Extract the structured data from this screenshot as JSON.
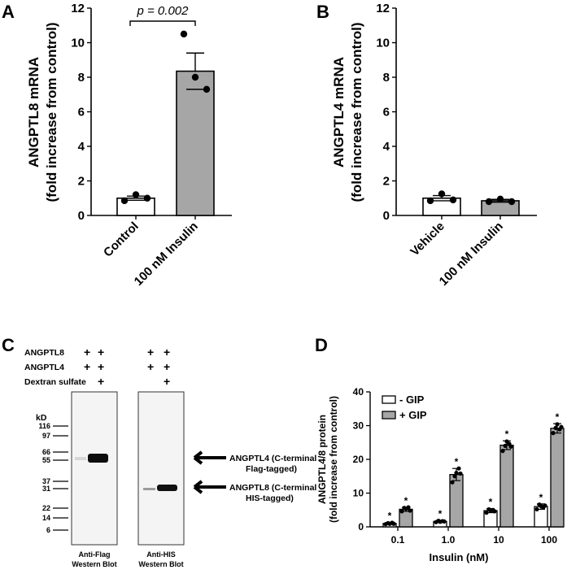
{
  "panels": {
    "A": {
      "label": "A",
      "ylabel1": "ANGPTL8 mRNA",
      "ylabel2": "(fold increase from control)",
      "pvalue": "p = 0.002"
    },
    "B": {
      "label": "B",
      "ylabel1": "ANGPTL4 mRNA",
      "ylabel2": "(fold increase from control)"
    },
    "C": {
      "label": "C",
      "rows": [
        "ANGPTL8",
        "ANGPTL4",
        "Dextran sulfate"
      ],
      "plus": "+",
      "kd_label": "kD",
      "markers": [
        "116",
        "97",
        "66",
        "55",
        "37",
        "31",
        "22",
        "14",
        "6"
      ],
      "annot1": [
        "ANGPTL4 (C-terminal",
        "Flag-tagged)"
      ],
      "annot2": [
        "ANGPTL8 (C-terminal",
        "HIS-tagged)"
      ],
      "blot1_caption": [
        "Anti-Flag",
        "Western Blot"
      ],
      "blot2_caption": [
        "Anti-HIS",
        "Western Blot"
      ]
    },
    "D": {
      "label": "D",
      "ylabel1": "ANGPTL4/8 protein",
      "ylabel2": "(fold increase from control)",
      "xlabel": "Insulin (nM)",
      "legend": [
        "- GIP",
        "+ GIP"
      ],
      "sig_marker": "*"
    }
  },
  "colors": {
    "gray_bar": "#a6a6a6",
    "white_bar": "#ffffff",
    "ink": "#000000"
  },
  "chart_data": [
    {
      "type": "bar",
      "panel": "A",
      "categories": [
        "Control",
        "100 nM Insulin"
      ],
      "values": [
        1.0,
        8.35
      ],
      "errors": [
        0.12,
        1.05
      ],
      "points": [
        [
          0.85,
          1.2,
          1.0
        ],
        [
          10.5,
          8.0,
          7.3
        ]
      ],
      "bar_colors": [
        "#ffffff",
        "#a6a6a6"
      ],
      "yticks": [
        "0",
        "2",
        "4",
        "6",
        "8",
        "10",
        "12"
      ],
      "ylim": [
        0,
        12
      ],
      "annotation": "p = 0.002"
    },
    {
      "type": "bar",
      "panel": "B",
      "categories": [
        "Vehicle",
        "100 nM Insulin"
      ],
      "values": [
        1.0,
        0.85
      ],
      "errors": [
        0.15,
        0.08
      ],
      "points": [
        [
          0.85,
          1.25,
          0.9
        ],
        [
          0.8,
          0.95,
          0.8
        ]
      ],
      "bar_colors": [
        "#ffffff",
        "#a6a6a6"
      ],
      "yticks": [
        "0",
        "2",
        "4",
        "6",
        "8",
        "10",
        "12"
      ],
      "ylim": [
        0,
        12
      ]
    },
    {
      "type": "bar",
      "panel": "D",
      "categories": [
        "0.1",
        "1.0",
        "10",
        "100"
      ],
      "ylim": [
        0,
        40
      ],
      "yticks": [
        "0",
        "10",
        "20",
        "30",
        "40"
      ],
      "series": [
        {
          "name": "- GIP",
          "color": "#ffffff",
          "values": [
            1.0,
            1.6,
            4.8,
            6.0
          ],
          "errors": [
            0.3,
            0.3,
            0.6,
            0.8
          ],
          "points": [
            [
              0.8,
              1.1,
              0.9,
              1.2,
              0.9
            ],
            [
              1.4,
              1.8,
              1.5,
              1.7,
              1.6
            ],
            [
              4.2,
              5.2,
              4.8,
              5.0,
              4.6
            ],
            [
              5.2,
              6.6,
              6.2,
              5.8,
              6.3
            ]
          ]
        },
        {
          "name": "+ GIP",
          "color": "#a6a6a6",
          "values": [
            5.2,
            15.5,
            24.2,
            29.2
          ],
          "errors": [
            0.6,
            1.8,
            1.3,
            1.4
          ],
          "points": [
            [
              4.6,
              5.6,
              5.4,
              5.8,
              4.8
            ],
            [
              13.2,
              15.0,
              16.0,
              17.3,
              15.8
            ],
            [
              22.5,
              24.0,
              25.3,
              24.6,
              23.8
            ],
            [
              27.8,
              29.3,
              30.4,
              28.9,
              29.6
            ]
          ]
        }
      ],
      "sig_marks": "*"
    }
  ]
}
